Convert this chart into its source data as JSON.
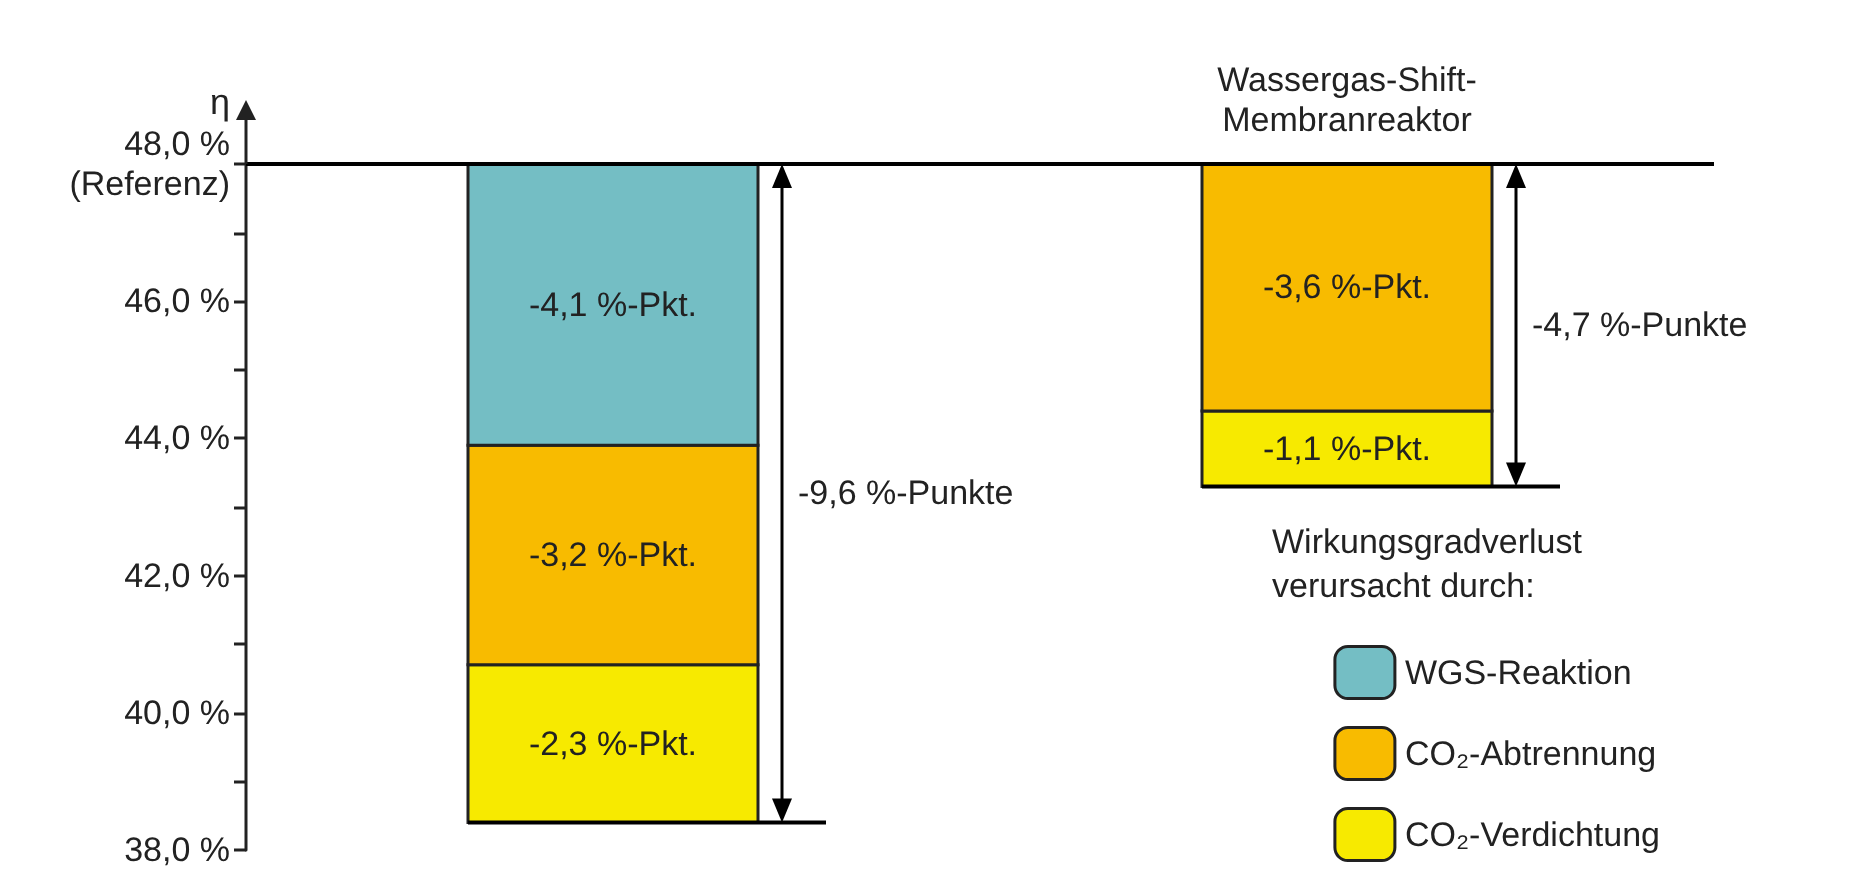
{
  "chart_data": {
    "type": "bar",
    "ylabel": "η",
    "legend_title": "Wirkungsgradverlust\nverursacht durch:",
    "legend": "bottom right",
    "categories": [
      null,
      "Wassergas-Shift-\nMembranreaktor"
    ],
    "series": [
      {
        "name": "CO₂-Verdichtung",
        "color": "#f7ea00",
        "base": [
          40.7,
          44.4
        ],
        "values": [
          -2.3,
          -1.1
        ],
        "value_labels": [
          "-2,3 %-Pkt.",
          "-1,1 %-Pkt."
        ]
      },
      {
        "name": "CO₂-Abtrennung",
        "color": "#f8bb00",
        "base": [
          43.9,
          48
        ],
        "values": [
          -3.2,
          -3.6
        ],
        "value_labels": [
          "-3,2 %-Pkt.",
          "-3,6 %-Pkt."
        ]
      },
      {
        "name": "WGS-Reaktion",
        "color": "#74bec4",
        "base": [
          48,
          null
        ],
        "values": [
          -4.1,
          null
        ],
        "value_labels": [
          "-4,1 %-Pkt.",
          null
        ]
      }
    ],
    "totals": [
      "-9,6 %-Punkte",
      "-4,7 %-Punkte"
    ],
    "ref_lines": [
      {
        "axis": "y",
        "value": 48
      }
    ],
    "ylim": [
      38,
      48
    ],
    "yticks": [
      {
        "value": 38,
        "label": "38,0 %"
      },
      {
        "value": 39,
        "label": null
      },
      {
        "value": 40,
        "label": "40,0 %"
      },
      {
        "value": 41,
        "label": null
      },
      {
        "value": 42,
        "label": "42,0 %"
      },
      {
        "value": 43,
        "label": null
      },
      {
        "value": 44,
        "label": "44,0 %"
      },
      {
        "value": 45,
        "label": null
      },
      {
        "value": 46,
        "label": "46,0 %"
      },
      {
        "value": 47,
        "label": null
      },
      {
        "value": 48,
        "label": "48,0 %\n(Referenz)"
      }
    ]
  }
}
